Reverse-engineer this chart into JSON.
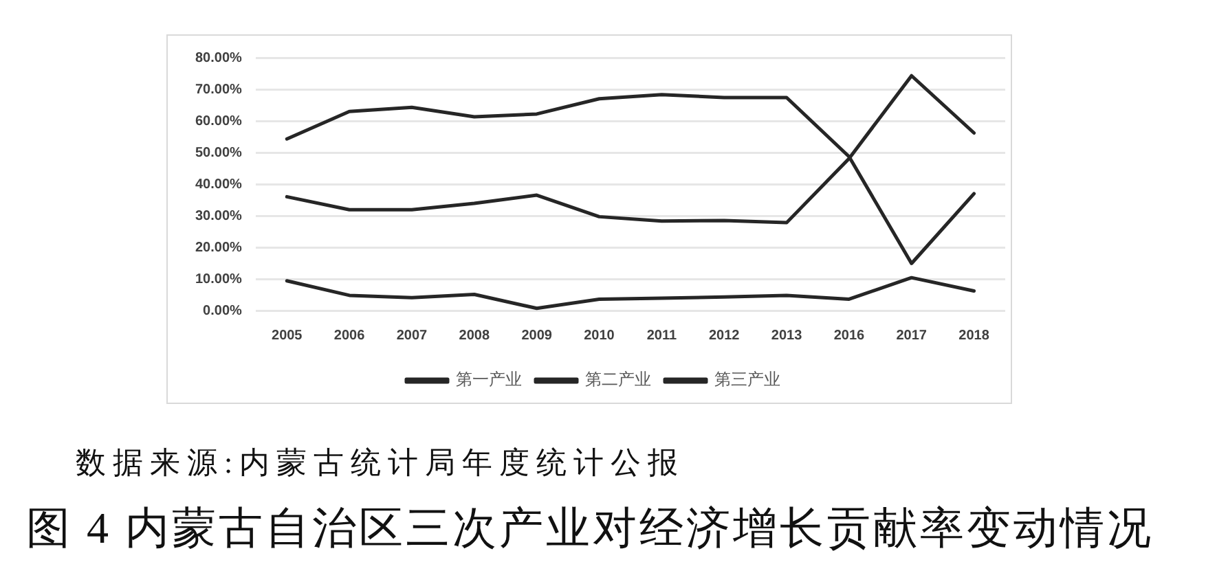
{
  "chart_data": {
    "type": "line",
    "title": "图 4 内蒙古自治区三次产业对经济增长贡献率变动情况",
    "annotations": [
      "数据来源:内蒙古统计局年度统计公报"
    ],
    "categories": [
      "2005",
      "2006",
      "2007",
      "2008",
      "2009",
      "2010",
      "2011",
      "2012",
      "2013",
      "2016",
      "2017",
      "2018"
    ],
    "series": [
      {
        "name": "第一产业",
        "color": "#262626",
        "values": [
          9.4,
          4.8,
          4.1,
          5.1,
          0.7,
          3.6,
          3.9,
          4.3,
          4.8,
          3.6,
          10.4,
          6.2
        ]
      },
      {
        "name": "第二产业",
        "color": "#262626",
        "values": [
          54.3,
          63,
          64.3,
          61.3,
          62.2,
          67,
          68.3,
          67.4,
          67.4,
          48.7,
          14.9,
          37
        ]
      },
      {
        "name": "第三产业",
        "color": "#262626",
        "values": [
          36,
          31.9,
          31.9,
          33.9,
          36.5,
          29.7,
          28.3,
          28.5,
          27.8,
          48.1,
          74.3,
          56.2
        ]
      }
    ],
    "ylim": [
      0,
      80
    ],
    "yticks": [
      {
        "value": 0,
        "label": "0.00%"
      },
      {
        "value": 10,
        "label": "10.00%"
      },
      {
        "value": 20,
        "label": "20.00%"
      },
      {
        "value": 30,
        "label": "30.00%"
      },
      {
        "value": 40,
        "label": "40.00%"
      },
      {
        "value": 50,
        "label": "50.00%"
      },
      {
        "value": 60,
        "label": "60.00%"
      },
      {
        "value": 70,
        "label": "70.00%"
      },
      {
        "value": 80,
        "label": "80.00%"
      }
    ],
    "grid": "y",
    "legend": "bottom",
    "marker": "none",
    "line_style": "solid"
  }
}
